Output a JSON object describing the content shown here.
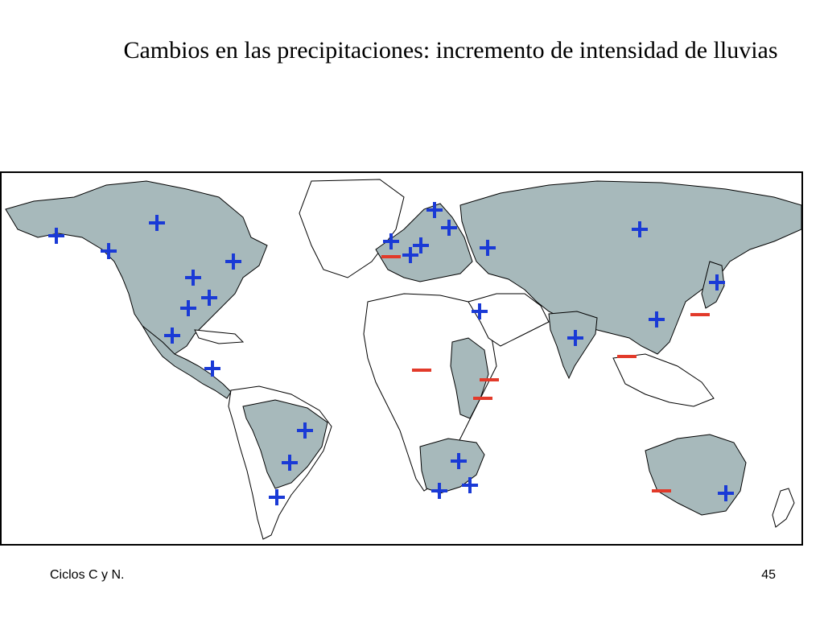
{
  "slide": {
    "title": "Cambios en las precipitaciones: incremento de intensidad de lluvias",
    "footer_left": "Ciclos C y N.",
    "page_number": "45"
  },
  "map": {
    "colors": {
      "land_highlighted": "#a7b9bb",
      "land_other": "#ffffff",
      "borders": "#000000",
      "plus_marker": "#1a3ad6",
      "minus_marker": "#e23a2a"
    },
    "legend_symbols": {
      "plus": "+",
      "minus": "−"
    }
  }
}
